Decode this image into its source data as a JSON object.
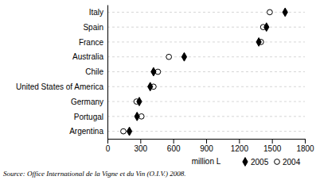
{
  "chart_data": {
    "type": "dot",
    "orientation": "horizontal",
    "categories": [
      "Italy",
      "Spain",
      "France",
      "Australia",
      "Chile",
      "United States of America",
      "Germany",
      "Portugal",
      "Argentina"
    ],
    "series": [
      {
        "name": "2005",
        "color": "#000000",
        "marker": "diamond",
        "values": [
          1620,
          1450,
          1380,
          700,
          420,
          390,
          290,
          270,
          200
        ]
      },
      {
        "name": "2004",
        "color": "#000000",
        "marker": "circle",
        "values": [
          1480,
          1420,
          1400,
          560,
          460,
          420,
          265,
          310,
          145
        ]
      }
    ],
    "xlabel": "million L",
    "xlim": [
      0,
      1800
    ],
    "xticks": [
      0,
      300,
      600,
      900,
      1200,
      1500,
      1800
    ],
    "grid": true,
    "legend": "lower right",
    "annotations": [
      "Source: Office International de la Vigne et du Vin (O.I.V.) 2008."
    ]
  }
}
